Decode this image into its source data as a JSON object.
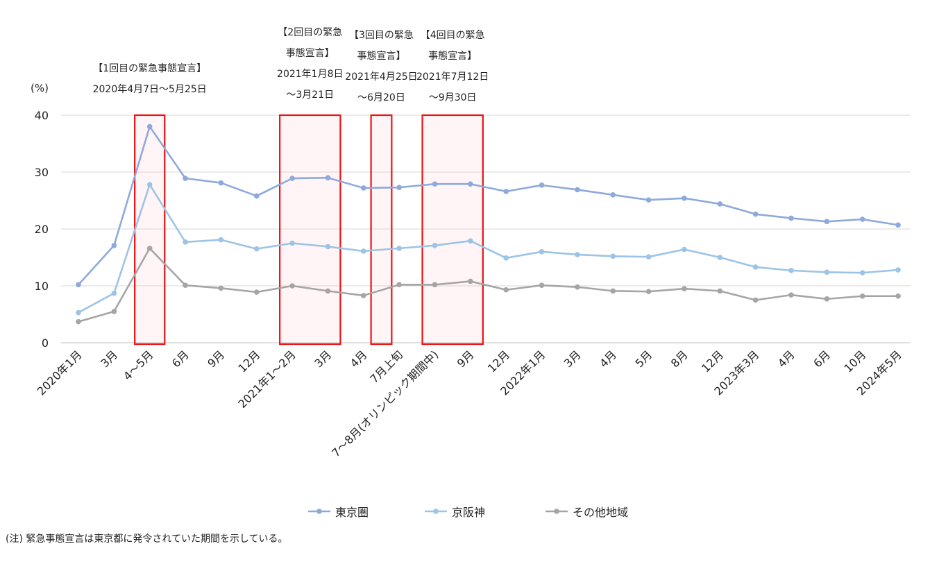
{
  "chart_data": {
    "type": "line",
    "ylabel": "(%)",
    "ylim": [
      0,
      40
    ],
    "yticks": [
      "0",
      "10",
      "20",
      "30",
      "40"
    ],
    "grid": true,
    "legend_position": "bottom",
    "categories": [
      "2020年1月",
      "3月",
      "4～5月",
      "6月",
      "9月",
      "12月",
      "2021年1～2月",
      "3月",
      "4月",
      "7月上旬",
      "7～8月(オリンピック期間中)",
      "9月",
      "12月",
      "2022年1月",
      "3月",
      "4月",
      "5月",
      "8月",
      "12月",
      "2023年3月",
      "4月",
      "6月",
      "10月",
      "2024年5月"
    ],
    "series": [
      {
        "name": "東京圏",
        "color": "#8ea9db",
        "values": [
          10.2,
          17.1,
          38.0,
          28.9,
          28.1,
          25.8,
          28.9,
          29.0,
          27.2,
          27.3,
          27.9,
          27.9,
          26.6,
          27.7,
          26.9,
          26.0,
          25.1,
          25.4,
          24.4,
          22.6,
          21.9,
          21.3,
          21.7,
          20.7
        ]
      },
      {
        "name": "京阪神",
        "color": "#9dc3e6",
        "values": [
          5.3,
          8.7,
          27.8,
          17.7,
          18.1,
          16.5,
          17.5,
          16.9,
          16.1,
          16.6,
          17.1,
          17.9,
          14.9,
          16.0,
          15.5,
          15.2,
          15.1,
          16.4,
          15.0,
          13.3,
          12.7,
          12.4,
          12.3,
          12.8
        ]
      },
      {
        "name": "その他地域",
        "color": "#a5a5a5",
        "values": [
          3.7,
          5.5,
          16.6,
          10.1,
          9.6,
          8.9,
          10.0,
          9.1,
          8.3,
          10.2,
          10.2,
          10.8,
          9.3,
          10.1,
          9.8,
          9.1,
          9.0,
          9.5,
          9.1,
          7.5,
          8.4,
          7.7,
          8.2,
          8.2
        ]
      }
    ],
    "annotations": [
      {
        "lines": [
          "【1回目の緊急事態宣言】",
          "2020年4月7日～5月25日"
        ],
        "from_index": 2,
        "to_index": 2
      },
      {
        "lines": [
          "【2回目の緊急",
          "事態宣言】",
          "2021年1月8日",
          "～3月21日"
        ],
        "from_index": 6,
        "to_index": 7
      },
      {
        "lines": [
          "【3回目の緊急",
          "事態宣言】",
          "2021年4月25日",
          "～6月20日"
        ],
        "from_index": 8.5,
        "to_index": 8.5
      },
      {
        "lines": [
          "【4回目の緊急",
          "事態宣言】",
          "2021年7月12日",
          "～9月30日"
        ],
        "from_index": 10,
        "to_index": 11
      }
    ]
  },
  "note": "(注) 緊急事態宣言は東京都に発令されていた期間を示している。"
}
